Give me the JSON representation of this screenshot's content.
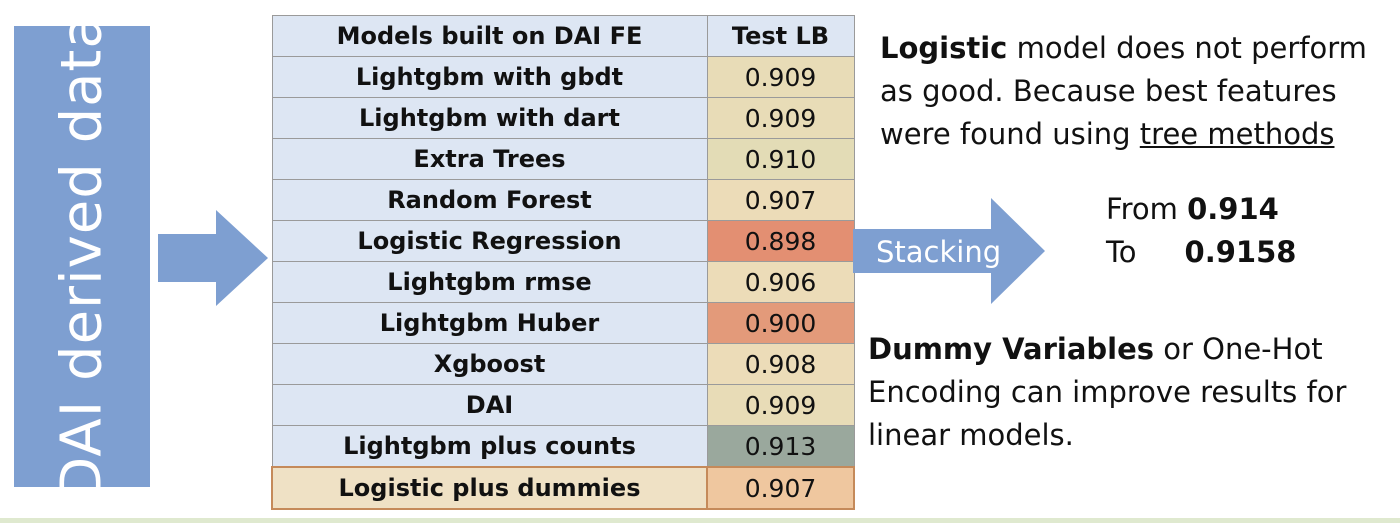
{
  "side_label": "DAI derived data",
  "table": {
    "headers": [
      "Models built on DAI FE",
      "Test LB"
    ],
    "rows": [
      {
        "model": "Lightgbm with gbdt",
        "score": "0.909",
        "color": "#e8dcb7"
      },
      {
        "model": "Lightgbm with dart",
        "score": "0.909",
        "color": "#e8dcb7"
      },
      {
        "model": "Extra Trees",
        "score": "0.910",
        "color": "#e3dcb6"
      },
      {
        "model": "Random Forest",
        "score": "0.907",
        "color": "#ecdcb8"
      },
      {
        "model": "Logistic Regression",
        "score": "0.898",
        "color": "#e38f72"
      },
      {
        "model": "Lightgbm rmse",
        "score": "0.906",
        "color": "#ecdcb8"
      },
      {
        "model": "Lightgbm Huber",
        "score": "0.900",
        "color": "#e39a7a"
      },
      {
        "model": "Xgboost",
        "score": "0.908",
        "color": "#ecdcb8"
      },
      {
        "model": "DAI",
        "score": "0.909",
        "color": "#e8dcb7"
      },
      {
        "model": "Lightgbm plus counts",
        "score": "0.913",
        "color": "#9aa89d"
      },
      {
        "model": "Logistic plus dummies",
        "score": "0.907",
        "color": "#efc79f"
      }
    ]
  },
  "stacking_label": "Stacking",
  "note1": {
    "bold": "Logistic",
    "text_a": " model does not perform as good. Because best features were found using ",
    "underlined": "tree methods"
  },
  "from_to": {
    "from_label": "From",
    "from_value": "0.914",
    "to_label": "To",
    "to_value": "0.9158"
  },
  "note2": {
    "bold": "Dummy Variables",
    "text": " or One-Hot Encoding can improve results for linear models."
  },
  "colors": {
    "arrow_blue": "#7e9fd1",
    "header_blue": "#dde6f3",
    "final_border": "#c58a5a"
  }
}
